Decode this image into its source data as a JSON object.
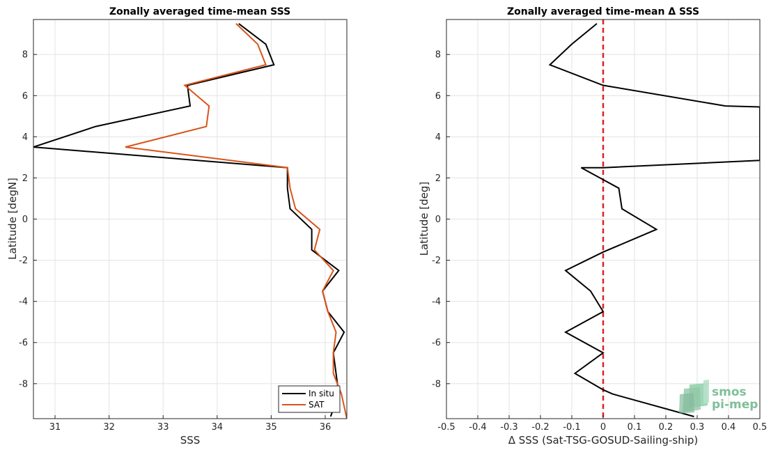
{
  "chart_data": [
    {
      "type": "line",
      "title": "Zonally averaged time-mean SSS",
      "xlabel": "SSS",
      "ylabel": "Latitude [degN]",
      "xlim": [
        30.6,
        36.4
      ],
      "ylim": [
        -9.7,
        9.7
      ],
      "xticks": [
        31,
        32,
        33,
        34,
        35,
        36
      ],
      "yticks": [
        -8,
        -6,
        -4,
        -2,
        0,
        2,
        4,
        6,
        8
      ],
      "grid": true,
      "legend_position": "bottom-right",
      "series": [
        {
          "name": "In situ",
          "color": "#000000",
          "points": [
            [
              34.4,
              9.5
            ],
            [
              34.9,
              8.5
            ],
            [
              35.05,
              7.5
            ],
            [
              33.45,
              6.5
            ],
            [
              33.5,
              5.5
            ],
            [
              31.75,
              4.5
            ],
            [
              30.6,
              3.5
            ],
            [
              35.3,
              2.5
            ],
            [
              35.3,
              1.5
            ],
            [
              35.35,
              0.5
            ],
            [
              35.75,
              -0.5
            ],
            [
              35.75,
              -1.5
            ],
            [
              36.25,
              -2.5
            ],
            [
              35.95,
              -3.5
            ],
            [
              36.05,
              -4.5
            ],
            [
              36.35,
              -5.5
            ],
            [
              36.15,
              -6.5
            ],
            [
              36.2,
              -7.5
            ],
            [
              36.25,
              -8.5
            ],
            [
              36.1,
              -9.6
            ]
          ]
        },
        {
          "name": "SAT",
          "color": "#D95319",
          "points": [
            [
              34.35,
              9.5
            ],
            [
              34.75,
              8.5
            ],
            [
              34.9,
              7.5
            ],
            [
              33.4,
              6.5
            ],
            [
              33.85,
              5.5
            ],
            [
              33.8,
              4.5
            ],
            [
              32.3,
              3.5
            ],
            [
              35.3,
              2.5
            ],
            [
              35.35,
              1.5
            ],
            [
              35.45,
              0.5
            ],
            [
              35.9,
              -0.5
            ],
            [
              35.8,
              -1.5
            ],
            [
              36.15,
              -2.5
            ],
            [
              35.95,
              -3.5
            ],
            [
              36.05,
              -4.5
            ],
            [
              36.2,
              -5.5
            ],
            [
              36.15,
              -6.5
            ],
            [
              36.15,
              -7.5
            ],
            [
              36.3,
              -8.5
            ],
            [
              36.4,
              -9.7
            ]
          ]
        }
      ]
    },
    {
      "type": "line",
      "title": "Zonally averaged time-mean Δ SSS",
      "xlabel": "Δ SSS (Sat-TSG-GOSUD-Sailing-ship)",
      "ylabel": "Latitude [deg]",
      "xlim": [
        -0.5,
        0.5
      ],
      "ylim": [
        -9.7,
        9.7
      ],
      "xticks": [
        -0.5,
        -0.4,
        -0.3,
        -0.2,
        -0.1,
        0,
        0.1,
        0.2,
        0.3,
        0.4,
        0.5
      ],
      "yticks": [
        -8,
        -6,
        -4,
        -2,
        0,
        2,
        4,
        6,
        8
      ],
      "grid": true,
      "reference_line": {
        "x": 0,
        "color": "#E02020",
        "style": "dashed"
      },
      "series": [
        {
          "color": "#000000",
          "points": [
            [
              -0.02,
              9.5
            ],
            [
              -0.1,
              8.5
            ],
            [
              -0.17,
              7.5
            ],
            [
              0.0,
              6.5
            ],
            [
              0.39,
              5.5
            ],
            [
              0.5,
              5.45
            ],
            [
              0.5,
              2.85
            ],
            [
              0.0,
              2.5
            ],
            [
              -0.07,
              2.5
            ],
            [
              0.05,
              1.5
            ],
            [
              0.06,
              0.5
            ],
            [
              0.17,
              -0.5
            ],
            [
              0.0,
              -1.6
            ],
            [
              -0.12,
              -2.5
            ],
            [
              -0.04,
              -3.5
            ],
            [
              0.0,
              -4.5
            ],
            [
              -0.12,
              -5.5
            ],
            [
              0.0,
              -6.5
            ],
            [
              -0.09,
              -7.5
            ],
            [
              0.0,
              -8.3
            ],
            [
              0.03,
              -8.5
            ],
            [
              0.29,
              -9.6
            ]
          ]
        }
      ]
    }
  ],
  "logo": {
    "line1": "smos",
    "line2": "pi-mep",
    "color": "#7FBF9A"
  }
}
